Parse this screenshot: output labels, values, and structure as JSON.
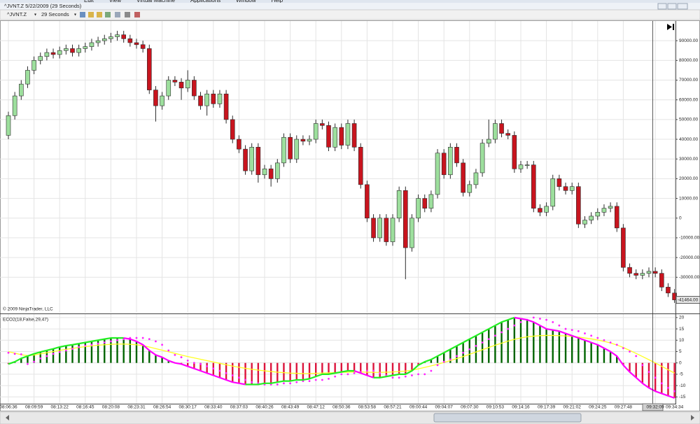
{
  "window": {
    "menu": [
      "Edit",
      "View",
      "Virtual Machine",
      "Applications",
      "Window",
      "Help"
    ],
    "title": "^JVNT.Z  5/22/2009 (29 Seconds)",
    "toolbar": {
      "instrument": "^JVNT.Z",
      "period": "29 Seconds"
    }
  },
  "chart_data": [
    {
      "type": "candlestick",
      "copyright": "© 2009 NinjaTrader, LLC",
      "categories": [
        "08:06:36",
        null,
        null,
        null,
        "08:09:59",
        null,
        null,
        null,
        "08:13:22",
        null,
        null,
        null,
        "08:16:45",
        null,
        null,
        null,
        "08:20:08",
        null,
        null,
        null,
        "08:23:31",
        null,
        null,
        null,
        "08:26:54",
        null,
        null,
        null,
        "08:30:17",
        null,
        null,
        null,
        "08:33:40",
        null,
        null,
        null,
        "08:37:03",
        null,
        null,
        null,
        "08:40:26",
        null,
        null,
        null,
        "08:43:49",
        null,
        null,
        null,
        "08:47:12",
        null,
        null,
        null,
        "08:50:36",
        null,
        null,
        null,
        "08:53:58",
        null,
        null,
        null,
        "08:57:21",
        null,
        null,
        null,
        "09:00:44",
        null,
        null,
        null,
        "09:04:07",
        null,
        null,
        null,
        "09:07:30",
        null,
        null,
        null,
        "09:10:53",
        null,
        null,
        null,
        "09:14:16",
        null,
        null,
        null,
        "09:17:39",
        null,
        null,
        null,
        "09:21:02",
        null,
        null,
        null,
        "09:24:25",
        null,
        null,
        null,
        "09:27:48",
        null,
        null,
        null,
        null,
        "09:32:09",
        null,
        null,
        "09:34:34"
      ],
      "open": [
        42000,
        52000,
        62000,
        68000,
        75000,
        80000,
        82000,
        84000,
        83000,
        85000,
        86000,
        84000,
        86000,
        87000,
        89000,
        90000,
        91000,
        92000,
        93000,
        91000,
        89000,
        88000,
        86000,
        65000,
        57000,
        62000,
        70000,
        69000,
        66000,
        70000,
        62000,
        57000,
        63000,
        58000,
        63000,
        50000,
        40000,
        35000,
        24000,
        36000,
        22000,
        25000,
        20000,
        28000,
        41000,
        30000,
        40000,
        39000,
        40000,
        48000,
        47000,
        36000,
        46000,
        37000,
        48000,
        36000,
        17000,
        0,
        -10000,
        0,
        -12000,
        0,
        14000,
        -15000,
        0,
        10000,
        5000,
        12000,
        33000,
        22000,
        36000,
        28000,
        13000,
        17000,
        23000,
        38000,
        40000,
        48000,
        43000,
        42000,
        25000,
        27000,
        27000,
        5000,
        3000,
        6000,
        20000,
        16000,
        14000,
        16000,
        -3000,
        -1000,
        1000,
        3000,
        5000,
        6000,
        -5000,
        -25000,
        -28000,
        -29000,
        -28000,
        -27000,
        -28000,
        -35000,
        -38000
      ],
      "high": [
        54000,
        64000,
        70000,
        77000,
        82000,
        84000,
        86000,
        86000,
        87000,
        88000,
        88000,
        88000,
        89000,
        91000,
        92000,
        93000,
        94000,
        95000,
        95000,
        93000,
        91000,
        90000,
        88000,
        67000,
        64000,
        72000,
        72000,
        71000,
        75000,
        72000,
        64000,
        65000,
        65000,
        65000,
        65000,
        52000,
        42000,
        37000,
        38000,
        38000,
        27000,
        27000,
        30000,
        43000,
        43000,
        42000,
        42000,
        42000,
        50000,
        50000,
        49000,
        48000,
        48000,
        50000,
        50000,
        38000,
        19000,
        2000,
        2000,
        2000,
        2000,
        16000,
        16000,
        2000,
        12000,
        12000,
        14000,
        35000,
        35000,
        38000,
        38000,
        30000,
        19000,
        25000,
        40000,
        50000,
        50000,
        50000,
        45000,
        44000,
        29000,
        29000,
        29000,
        7000,
        8000,
        22000,
        22000,
        18000,
        18000,
        18000,
        1000,
        3000,
        5000,
        7000,
        8000,
        8000,
        -3000,
        -23000,
        -26000,
        -26000,
        -25000,
        -25000,
        -26000,
        -33000,
        -36000
      ],
      "low": [
        40000,
        50000,
        60000,
        66000,
        73000,
        78000,
        80000,
        81000,
        81000,
        83000,
        82000,
        82000,
        84000,
        85000,
        87000,
        88000,
        89000,
        90000,
        89000,
        87000,
        86000,
        84000,
        63000,
        49000,
        55000,
        60000,
        67000,
        60000,
        64000,
        60000,
        55000,
        52000,
        56000,
        56000,
        48000,
        38000,
        33000,
        22000,
        22000,
        18000,
        20000,
        16000,
        18000,
        26000,
        28000,
        28000,
        37000,
        37000,
        38000,
        45000,
        34000,
        34000,
        35000,
        35000,
        34000,
        15000,
        -2000,
        -12000,
        -12000,
        -14000,
        -14000,
        -2000,
        -31000,
        -17000,
        -2000,
        3000,
        3000,
        10000,
        20000,
        20000,
        26000,
        11000,
        11000,
        15000,
        21000,
        36000,
        38000,
        41000,
        40000,
        23000,
        23000,
        25000,
        3000,
        1000,
        1000,
        4000,
        14000,
        12000,
        12000,
        -5000,
        -5000,
        -3000,
        -1000,
        1000,
        3000,
        -7000,
        -27000,
        -30000,
        -31000,
        -31000,
        -30000,
        -30000,
        -37000,
        -40000,
        -43000
      ],
      "close": [
        52000,
        62000,
        68000,
        75000,
        80000,
        82000,
        84000,
        83000,
        85000,
        86000,
        84000,
        86000,
        87000,
        89000,
        90000,
        91000,
        92000,
        93000,
        91000,
        89000,
        88000,
        86000,
        65000,
        57000,
        62000,
        70000,
        69000,
        66000,
        70000,
        62000,
        57000,
        63000,
        58000,
        63000,
        50000,
        40000,
        35000,
        24000,
        36000,
        22000,
        25000,
        20000,
        28000,
        41000,
        30000,
        40000,
        39000,
        40000,
        48000,
        47000,
        36000,
        46000,
        37000,
        48000,
        36000,
        17000,
        0,
        -10000,
        0,
        -12000,
        0,
        14000,
        -15000,
        0,
        10000,
        5000,
        12000,
        33000,
        22000,
        36000,
        28000,
        13000,
        17000,
        23000,
        38000,
        40000,
        48000,
        43000,
        42000,
        25000,
        27000,
        27000,
        5000,
        3000,
        6000,
        20000,
        16000,
        14000,
        16000,
        -3000,
        -1000,
        1000,
        3000,
        5000,
        6000,
        -5000,
        -25000,
        -28000,
        -29000,
        -28000,
        -27000,
        -28000,
        -35000,
        -38000,
        -41464
      ],
      "up_color": "#9ddf9d",
      "down_color": "#c8141e",
      "outline_color": "#2b2b2b",
      "last_price": {
        "value": -41464,
        "label": "-41464.00"
      },
      "ylim": [
        -48000,
        100000
      ],
      "yticks": [
        {
          "value": 90000,
          "label": "90000.00"
        },
        {
          "value": 80000,
          "label": "80000.00"
        },
        {
          "value": 70000,
          "label": "70000.00"
        },
        {
          "value": 60000,
          "label": "60000.00"
        },
        {
          "value": 50000,
          "label": "50000.00"
        },
        {
          "value": 40000,
          "label": "40000.00"
        },
        {
          "value": 30000,
          "label": "30000.00"
        },
        {
          "value": 20000,
          "label": "20000.00"
        },
        {
          "value": 10000,
          "label": "10000.00"
        },
        0,
        {
          "value": -10000,
          "label": "-10000.00"
        },
        {
          "value": -20000,
          "label": "-20000.00"
        },
        {
          "value": -30000,
          "label": "-30000.00"
        }
      ],
      "grid": true
    },
    {
      "type": "indicator",
      "title": "ECO2(18,False,29,47)",
      "series": [
        {
          "kind": "histogram_line",
          "colors": {
            "positive": "#006400",
            "negative": "#dc143c",
            "rising": "#22ee22",
            "falling": "#ff00ff"
          },
          "values": [
            -0.5,
            0.5,
            2,
            3,
            4,
            4.8,
            5.5,
            6.2,
            7,
            7.6,
            8,
            8.5,
            9,
            9.5,
            10,
            10.5,
            11,
            11,
            11,
            10.5,
            9.5,
            8,
            5.5,
            3.5,
            2.5,
            1,
            0,
            -0.5,
            -1.5,
            -2.5,
            -3.5,
            -4.5,
            -5.5,
            -6.5,
            -7.5,
            -8.5,
            -9,
            -9.5,
            -9.5,
            -9.5,
            -9,
            -9,
            -8.5,
            -8,
            -8,
            -7.5,
            -7.5,
            -7,
            -6,
            -5,
            -5,
            -4.5,
            -4,
            -3.5,
            -3.5,
            -4.5,
            -5.5,
            -6.5,
            -6.5,
            -6,
            -5.5,
            -5,
            -5,
            -3.5,
            -1,
            0.5,
            1.5,
            3,
            4.5,
            6,
            7.5,
            9,
            10.5,
            12,
            13.5,
            15,
            16.5,
            18,
            19,
            20,
            19.5,
            19,
            18,
            16.5,
            15,
            14.5,
            14,
            13,
            12,
            11,
            10,
            9,
            8,
            6.5,
            5,
            3,
            -1,
            -4,
            -6.5,
            -9,
            -11,
            -12.5,
            -13.5,
            -14.5,
            -15.5
          ]
        },
        {
          "kind": "line",
          "color": "#ffff22",
          "values": [
            5,
            4.3,
            3.6,
            3.2,
            3.5,
            4,
            4.5,
            5,
            5.5,
            6,
            6.4,
            6.8,
            7.2,
            7.5,
            7.8,
            8,
            8.2,
            8.3,
            8.3,
            8.2,
            8,
            7.6,
            7,
            6.3,
            5.6,
            4.9,
            4.2,
            3.5,
            2.8,
            2.2,
            1.6,
            1,
            0.4,
            -0.2,
            -0.8,
            -1.4,
            -1.9,
            -2.4,
            -2.8,
            -3.2,
            -3.5,
            -3.8,
            -4.1,
            -4.3,
            -4.5,
            -4.6,
            -4.7,
            -4.7,
            -4.6,
            -4.5,
            -4.4,
            -4.3,
            -4.2,
            -4.1,
            -4,
            -4,
            -4.1,
            -4.2,
            -4.2,
            -4.1,
            -4,
            -3.8,
            -3.6,
            -3.2,
            -2.6,
            -2,
            -1.3,
            -0.6,
            0.2,
            1,
            1.9,
            2.8,
            3.8,
            4.8,
            5.8,
            6.8,
            7.8,
            8.7,
            9.6,
            10.4,
            11,
            11.5,
            11.8,
            12,
            12.1,
            12.1,
            12,
            11.9,
            11.7,
            11.4,
            11,
            10.6,
            10.1,
            9.5,
            8.8,
            7.9,
            6.8,
            5.5,
            4.2,
            2.8,
            1.4,
            0,
            -1.5,
            -3,
            -4.5
          ]
        },
        {
          "kind": "dots",
          "color": "#ff22ff",
          "values": [
            4.5,
            4,
            3.8,
            -0.5,
            0.5,
            2,
            3,
            4,
            4.8,
            5.5,
            6.2,
            7,
            7.6,
            8,
            8.5,
            9,
            9.5,
            10,
            10.5,
            11,
            11,
            11,
            10.5,
            9.5,
            8,
            5.5,
            3.5,
            2.5,
            1,
            0,
            -0.5,
            -1.5,
            -2.5,
            -3.5,
            -4.5,
            -5.5,
            -6.5,
            -7.5,
            -8.5,
            -9,
            -9.5,
            -9.5,
            -9.5,
            -9,
            -9,
            -8.5,
            -8,
            -8,
            -7.5,
            -7.5,
            -7,
            -6,
            -5,
            -5,
            -4.5,
            -4,
            -3.5,
            -3.5,
            -4.5,
            -5.5,
            -6.5,
            -6.5,
            -6,
            -5.5,
            -5,
            -5,
            -3.5,
            -1,
            0.5,
            1.5,
            3,
            4.5,
            6,
            7.5,
            9,
            10.5,
            12,
            13.5,
            15,
            16.5,
            18,
            19,
            20,
            19.5,
            19,
            18,
            16.5,
            15,
            14.5,
            14,
            13,
            12,
            11,
            10,
            9,
            8,
            6.5,
            5,
            3,
            -1,
            -4,
            -6.5,
            -9,
            -11,
            -12.5
          ]
        }
      ],
      "ylim": [
        -18,
        21.5
      ],
      "yticks": [
        20,
        15,
        10,
        5,
        0,
        -5,
        -10,
        -15
      ],
      "grid": true
    }
  ]
}
